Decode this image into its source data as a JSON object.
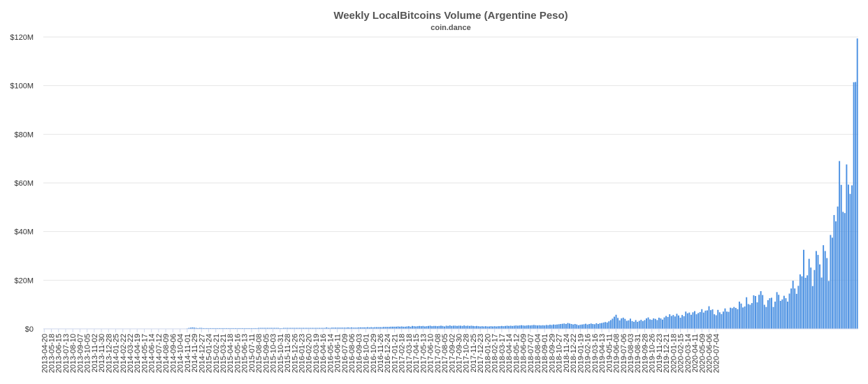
{
  "chart_data": {
    "type": "bar",
    "title": "Weekly LocalBitcoins Volume (Argentine Peso)",
    "subtitle": "coin.dance",
    "xlabel": "",
    "ylabel": "",
    "ylim": [
      0,
      120000000
    ],
    "y_ticks": [
      {
        "value": 0,
        "label": "$0"
      },
      {
        "value": 20000000,
        "label": "$20M"
      },
      {
        "value": 40000000,
        "label": "$40M"
      },
      {
        "value": 60000000,
        "label": "$60M"
      },
      {
        "value": 80000000,
        "label": "$80M"
      },
      {
        "value": 100000000,
        "label": "$100M"
      },
      {
        "value": 120000000,
        "label": "$120M"
      }
    ],
    "grid": true,
    "legend": "none",
    "color": "#4a90e2",
    "x_tick_labels": [
      "2013-04-20",
      "2013-05-18",
      "2013-06-15",
      "2013-07-13",
      "2013-08-10",
      "2013-09-07",
      "2013-10-05",
      "2013-11-02",
      "2013-11-30",
      "2013-12-28",
      "2014-01-25",
      "2014-02-22",
      "2014-03-22",
      "2014-04-19",
      "2014-05-17",
      "2014-06-14",
      "2014-07-12",
      "2014-08-09",
      "2014-09-06",
      "2014-10-04",
      "2014-11-01",
      "2014-11-29",
      "2014-12-27",
      "2015-01-24",
      "2015-02-21",
      "2015-03-21",
      "2015-04-18",
      "2015-05-16",
      "2015-06-13",
      "2015-07-11",
      "2015-08-08",
      "2015-09-05",
      "2015-10-03",
      "2015-10-31",
      "2015-11-28",
      "2015-12-26",
      "2016-01-23",
      "2016-02-20",
      "2016-03-19",
      "2016-04-16",
      "2016-05-14",
      "2016-06-11",
      "2016-07-09",
      "2016-08-06",
      "2016-09-03",
      "2016-10-01",
      "2016-10-29",
      "2016-11-26",
      "2016-12-24",
      "2017-01-21",
      "2017-02-18",
      "2017-03-18",
      "2017-04-15",
      "2017-05-13",
      "2017-06-10",
      "2017-07-08",
      "2017-08-05",
      "2017-09-02",
      "2017-09-30",
      "2017-10-28",
      "2017-11-25",
      "2017-12-23",
      "2018-01-20",
      "2018-02-17",
      "2018-03-17",
      "2018-04-14",
      "2018-05-12",
      "2018-06-09",
      "2018-07-07",
      "2018-08-04",
      "2018-09-01",
      "2018-09-29",
      "2018-10-27",
      "2018-11-24",
      "2018-12-22",
      "2019-01-19",
      "2019-02-16",
      "2019-03-16",
      "2019-04-13",
      "2019-05-11",
      "2019-06-08",
      "2019-07-06",
      "2019-08-03",
      "2019-08-31",
      "2019-09-28",
      "2019-10-26",
      "2019-11-23",
      "2019-12-21",
      "2020-01-18",
      "2020-02-15",
      "2020-03-14",
      "2020-04-11",
      "2020-05-09",
      "2020-06-06",
      "2020-07-04"
    ],
    "values": [
      0,
      0,
      0,
      0,
      0,
      0,
      0,
      0,
      0,
      0,
      0,
      0,
      0,
      0,
      0,
      0,
      0,
      0,
      0,
      0,
      0,
      0,
      0,
      0,
      0,
      0,
      0,
      0,
      0,
      0,
      0,
      0,
      0,
      0,
      0,
      0,
      0,
      0,
      0,
      0,
      0,
      0,
      0,
      0,
      0,
      0,
      0,
      0,
      0,
      0,
      0,
      0,
      0,
      0,
      0,
      0,
      0,
      0,
      0,
      0,
      0,
      0,
      0,
      0,
      0,
      0,
      0,
      0,
      0,
      0,
      0,
      0,
      0,
      0,
      0,
      0,
      0,
      0,
      0,
      0,
      200000,
      400000,
      500000,
      600000,
      500000,
      400000,
      300000,
      400000,
      400000,
      300000,
      300000,
      300000,
      300000,
      300000,
      300000,
      300000,
      300000,
      300000,
      300000,
      300000,
      300000,
      300000,
      300000,
      300000,
      300000,
      300000,
      300000,
      300000,
      300000,
      300000,
      300000,
      300000,
      300000,
      300000,
      300000,
      300000,
      300000,
      300000,
      300000,
      300000,
      400000,
      400000,
      400000,
      400000,
      400000,
      400000,
      400000,
      400000,
      400000,
      400000,
      400000,
      400000,
      300000,
      300000,
      400000,
      400000,
      400000,
      400000,
      400000,
      400000,
      400000,
      400000,
      400000,
      400000,
      400000,
      400000,
      400000,
      400000,
      400000,
      400000,
      400000,
      400000,
      400000,
      400000,
      400000,
      400000,
      400000,
      400000,
      600000,
      400000,
      400000,
      500000,
      500000,
      500000,
      500000,
      500000,
      500000,
      500000,
      500000,
      500000,
      600000,
      500000,
      600000,
      500000,
      500000,
      500000,
      600000,
      600000,
      600000,
      600000,
      600000,
      700000,
      600000,
      700000,
      600000,
      700000,
      700000,
      700000,
      700000,
      700000,
      800000,
      800000,
      800000,
      800000,
      900000,
      900000,
      900000,
      900000,
      1000000,
      900000,
      1000000,
      900000,
      900000,
      1000000,
      1100000,
      900000,
      1200000,
      1100000,
      1000000,
      1100000,
      1200000,
      1100000,
      1200000,
      1000000,
      1100000,
      1200000,
      1300000,
      1100000,
      1200000,
      1200000,
      1100000,
      1200000,
      1300000,
      1200000,
      1000000,
      1300000,
      1200000,
      1400000,
      1200000,
      1300000,
      1300000,
      1200000,
      1300000,
      1300000,
      1200000,
      1400000,
      1200000,
      1300000,
      1200000,
      1300000,
      1200000,
      1100000,
      1200000,
      1100000,
      1000000,
      1100000,
      1000000,
      1100000,
      1000000,
      1000000,
      1100000,
      1000000,
      1100000,
      1000000,
      1100000,
      1100000,
      1200000,
      1100000,
      1200000,
      1300000,
      1200000,
      1300000,
      1200000,
      1300000,
      1400000,
      1300000,
      1400000,
      1500000,
      1400000,
      1300000,
      1400000,
      1500000,
      1400000,
      1500000,
      1600000,
      1500000,
      1400000,
      1500000,
      1400000,
      1500000,
      1400000,
      1600000,
      1500000,
      1700000,
      1600000,
      1800000,
      1700000,
      1800000,
      1900000,
      2000000,
      2100000,
      2200000,
      2000000,
      2400000,
      2200000,
      2000000,
      1800000,
      2000000,
      1800000,
      1500000,
      1700000,
      1800000,
      1900000,
      2100000,
      1800000,
      2000000,
      2200000,
      2000000,
      1900000,
      2300000,
      2000000,
      2300000,
      2400000,
      2600000,
      2800000,
      2600000,
      3100000,
      3600000,
      4200000,
      5000000,
      5800000,
      4500000,
      3500000,
      4300000,
      4600000,
      4100000,
      3300000,
      3500000,
      4200000,
      3200000,
      2900000,
      3600000,
      2900000,
      3300000,
      3700000,
      3200000,
      3600000,
      4300000,
      4700000,
      3900000,
      3700000,
      4300000,
      4100000,
      3600000,
      4600000,
      4300000,
      3800000,
      4700000,
      5300000,
      4900000,
      6000000,
      5300000,
      5700000,
      5100000,
      6200000,
      5500000,
      4600000,
      5700000,
      5200000,
      7100000,
      6400000,
      6700000,
      5800000,
      6800000,
      7300000,
      6000000,
      6500000,
      6900000,
      8100000,
      6700000,
      7500000,
      7600000,
      9300000,
      7700000,
      8000000,
      6000000,
      5600000,
      7800000,
      6800000,
      6100000,
      7100000,
      8400000,
      7100000,
      7000000,
      8700000,
      8500000,
      9000000,
      8600000,
      8100000,
      11200000,
      10400000,
      8800000,
      9200000,
      13000000,
      10200000,
      9900000,
      10600000,
      13800000,
      13500000,
      10900000,
      14000000,
      15500000,
      13900000,
      9900000,
      9000000,
      11800000,
      12600000,
      12800000,
      9000000,
      11200000,
      15100000,
      14000000,
      11500000,
      12100000,
      13600000,
      12600000,
      11200000,
      14500000,
      16600000,
      19800000,
      16600000,
      14400000,
      17700000,
      22400000,
      21600000,
      32500000,
      21000000,
      22000000,
      28800000,
      25200000,
      17600000,
      24200000,
      32000000,
      30400000,
      26500000,
      21100000,
      34400000,
      32000000,
      29100000,
      19700000,
      38600000,
      37500000,
      46800000,
      44200000,
      50300000,
      69000000,
      59200000,
      48100000,
      47600000,
      67600000,
      59300000,
      55500000,
      59000000,
      101400000,
      101500000,
      119400000
    ]
  }
}
